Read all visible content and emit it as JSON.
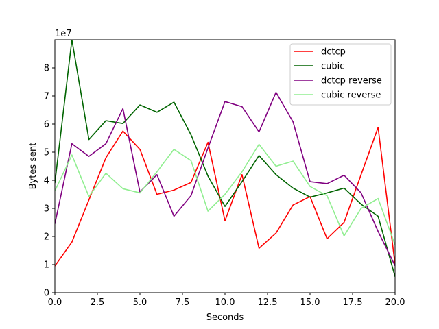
{
  "chart_data": {
    "type": "line",
    "title": "",
    "xlabel": "Seconds",
    "ylabel": "Bytes sent",
    "y_scale_label": "1e7",
    "xlim": [
      0,
      20
    ],
    "ylim": [
      0,
      9
    ],
    "x_ticks": [
      0,
      2.5,
      5,
      7.5,
      10,
      12.5,
      15,
      17.5,
      20
    ],
    "x_tick_labels": [
      "0.0",
      "2.5",
      "5.0",
      "7.5",
      "10.0",
      "12.5",
      "15.0",
      "17.5",
      "20.0"
    ],
    "y_ticks": [
      0,
      1,
      2,
      3,
      4,
      5,
      6,
      7,
      8
    ],
    "y_tick_labels": [
      "0",
      "1",
      "2",
      "3",
      "4",
      "5",
      "6",
      "7",
      "8"
    ],
    "grid": false,
    "legend_position": "top-right",
    "x": [
      0,
      1,
      2,
      3,
      4,
      5,
      6,
      7,
      8,
      9,
      10,
      11,
      12,
      13,
      14,
      15,
      16,
      17,
      18,
      19,
      20
    ],
    "series": [
      {
        "name": "dctcp",
        "color": "#ff0000",
        "values": [
          0.95,
          1.8,
          3.3,
          4.8,
          5.75,
          5.1,
          3.5,
          3.65,
          3.92,
          5.35,
          2.56,
          4.2,
          1.58,
          2.12,
          3.12,
          3.42,
          1.92,
          2.5,
          4.2,
          5.88,
          1.0
        ]
      },
      {
        "name": "cubic",
        "color": "#006400",
        "values": [
          3.9,
          9.0,
          5.45,
          6.12,
          6.02,
          6.68,
          6.42,
          6.78,
          5.62,
          4.15,
          3.07,
          3.95,
          4.88,
          4.2,
          3.72,
          3.4,
          3.55,
          3.72,
          3.15,
          2.72,
          0.57
        ]
      },
      {
        "name": "dctcp reverse",
        "color": "#800080",
        "values": [
          2.45,
          5.3,
          4.85,
          5.3,
          6.55,
          3.58,
          4.2,
          2.72,
          3.45,
          5.15,
          6.8,
          6.62,
          5.72,
          7.13,
          6.08,
          3.95,
          3.88,
          4.18,
          3.55,
          2.18,
          0.96
        ]
      },
      {
        "name": "cubic reverse",
        "color": "#90ee90",
        "values": [
          3.62,
          4.9,
          3.42,
          4.25,
          3.7,
          3.55,
          4.3,
          5.1,
          4.7,
          2.9,
          3.5,
          4.3,
          5.28,
          4.5,
          4.68,
          3.78,
          3.45,
          2.02,
          3.0,
          3.35,
          1.7
        ]
      }
    ]
  }
}
